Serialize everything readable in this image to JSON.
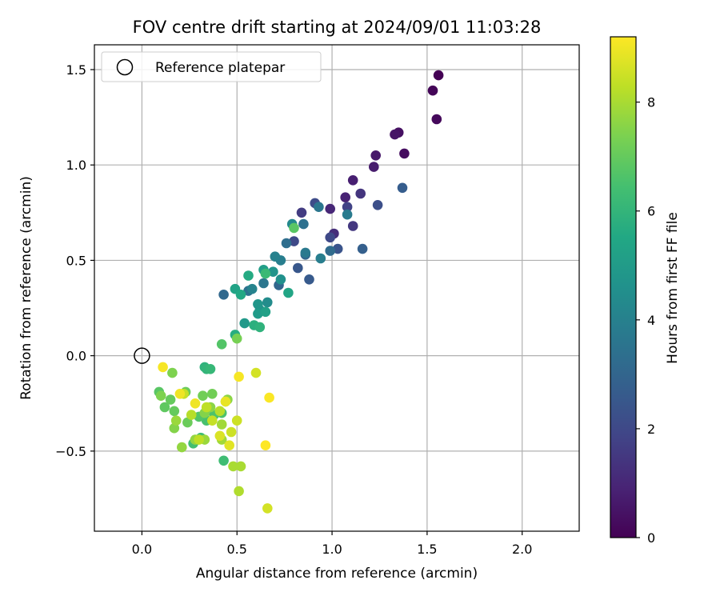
{
  "chart_data": {
    "type": "scatter",
    "title": "FOV centre drift starting at 2024/09/01 11:03:28",
    "xlabel": "Angular distance from reference (arcmin)",
    "ylabel": "Rotation from reference (arcmin)",
    "xlim": [
      -0.25,
      2.3
    ],
    "ylim": [
      -0.92,
      1.63
    ],
    "xticks": [
      0.0,
      0.5,
      1.0,
      1.5,
      2.0
    ],
    "xtick_labels": [
      "0.0",
      "0.5",
      "1.0",
      "1.5",
      "2.0"
    ],
    "yticks": [
      -0.5,
      0.0,
      0.5,
      1.0,
      1.5
    ],
    "ytick_labels": [
      "−0.5",
      "0.0",
      "0.5",
      "1.0",
      "1.5"
    ],
    "grid": true,
    "legend": {
      "placement": "top-left",
      "entries": [
        "Reference platepar"
      ]
    },
    "reference_point": {
      "x": 0.0,
      "y": 0.0
    },
    "colorbar": {
      "label": "Hours from first FF file",
      "colormap": "viridis",
      "range": [
        0,
        9.2
      ],
      "ticks": [
        0,
        2,
        4,
        6,
        8
      ],
      "tick_labels": [
        "0",
        "2",
        "4",
        "6",
        "8"
      ]
    },
    "points": [
      [
        1.56,
        1.47,
        0.0
      ],
      [
        1.53,
        1.39,
        0.1
      ],
      [
        1.55,
        1.24,
        0.2
      ],
      [
        1.38,
        1.06,
        0.3
      ],
      [
        1.35,
        1.17,
        0.4
      ],
      [
        1.33,
        1.16,
        0.5
      ],
      [
        1.23,
        1.05,
        0.6
      ],
      [
        1.22,
        0.99,
        0.7
      ],
      [
        1.11,
        0.92,
        0.8
      ],
      [
        1.07,
        0.83,
        0.9
      ],
      [
        0.99,
        0.77,
        1.0
      ],
      [
        1.01,
        0.64,
        1.2
      ],
      [
        1.15,
        0.85,
        1.4
      ],
      [
        1.11,
        0.68,
        1.5
      ],
      [
        0.84,
        0.75,
        1.6
      ],
      [
        1.08,
        0.78,
        1.8
      ],
      [
        0.99,
        0.62,
        2.0
      ],
      [
        0.8,
        0.6,
        2.0
      ],
      [
        0.91,
        0.8,
        2.1
      ],
      [
        1.24,
        0.79,
        2.2
      ],
      [
        1.03,
        0.56,
        2.4
      ],
      [
        0.82,
        0.46,
        2.5
      ],
      [
        0.88,
        0.4,
        2.6
      ],
      [
        1.37,
        0.88,
        2.7
      ],
      [
        1.16,
        0.56,
        2.8
      ],
      [
        0.86,
        0.53,
        3.0
      ],
      [
        0.72,
        0.37,
        3.0
      ],
      [
        0.43,
        0.32,
        3.1
      ],
      [
        0.99,
        0.55,
        3.2
      ],
      [
        0.76,
        0.59,
        3.3
      ],
      [
        0.85,
        0.69,
        3.4
      ],
      [
        0.56,
        0.34,
        3.5
      ],
      [
        0.64,
        0.38,
        3.6
      ],
      [
        0.93,
        0.78,
        3.6
      ],
      [
        0.86,
        0.54,
        3.7
      ],
      [
        1.08,
        0.74,
        3.8
      ],
      [
        0.73,
        0.5,
        3.9
      ],
      [
        0.94,
        0.51,
        3.9
      ],
      [
        0.7,
        0.52,
        4.0
      ],
      [
        0.58,
        0.35,
        4.1
      ],
      [
        0.79,
        0.69,
        4.3
      ],
      [
        0.66,
        0.28,
        4.4
      ],
      [
        0.62,
        0.24,
        4.5
      ],
      [
        0.73,
        0.4,
        4.6
      ],
      [
        0.69,
        0.44,
        4.7
      ],
      [
        0.61,
        0.27,
        4.8
      ],
      [
        0.54,
        0.17,
        4.9
      ],
      [
        0.61,
        0.22,
        5.0
      ],
      [
        0.64,
        0.45,
        5.1
      ],
      [
        0.65,
        0.23,
        5.2
      ],
      [
        0.49,
        0.35,
        5.3
      ],
      [
        0.77,
        0.33,
        5.4
      ],
      [
        0.52,
        0.32,
        5.5
      ],
      [
        0.56,
        0.42,
        5.6
      ],
      [
        0.49,
        0.11,
        5.7
      ],
      [
        0.59,
        0.16,
        5.8
      ],
      [
        0.62,
        0.15,
        5.9
      ],
      [
        0.33,
        -0.06,
        5.9
      ],
      [
        0.34,
        -0.07,
        6.0
      ],
      [
        0.36,
        -0.07,
        6.1
      ],
      [
        0.65,
        0.43,
        6.2
      ],
      [
        0.43,
        -0.55,
        6.3
      ],
      [
        0.31,
        -0.43,
        6.3
      ],
      [
        0.27,
        -0.46,
        6.4
      ],
      [
        0.34,
        -0.34,
        6.5
      ],
      [
        0.38,
        -0.31,
        6.6
      ],
      [
        0.42,
        -0.3,
        6.6
      ],
      [
        0.3,
        -0.32,
        6.7
      ],
      [
        0.42,
        0.06,
        6.7
      ],
      [
        0.8,
        0.67,
        6.8
      ],
      [
        0.09,
        -0.19,
        6.8
      ],
      [
        0.12,
        -0.27,
        6.9
      ],
      [
        0.15,
        -0.23,
        7.0
      ],
      [
        0.17,
        -0.29,
        7.0
      ],
      [
        0.23,
        -0.19,
        7.1
      ],
      [
        0.24,
        -0.35,
        7.1
      ],
      [
        0.32,
        -0.21,
        7.2
      ],
      [
        0.37,
        -0.2,
        7.2
      ],
      [
        0.44,
        -0.24,
        7.3
      ],
      [
        0.5,
        0.09,
        7.3
      ],
      [
        0.16,
        -0.09,
        7.4
      ],
      [
        0.1,
        -0.21,
        7.4
      ],
      [
        0.17,
        -0.38,
        7.5
      ],
      [
        0.33,
        -0.3,
        7.5
      ],
      [
        0.36,
        -0.27,
        7.6
      ],
      [
        0.45,
        -0.23,
        7.6
      ],
      [
        0.28,
        -0.44,
        7.7
      ],
      [
        0.21,
        -0.48,
        7.7
      ],
      [
        0.18,
        -0.34,
        7.8
      ],
      [
        0.33,
        -0.44,
        7.8
      ],
      [
        0.42,
        -0.36,
        7.9
      ],
      [
        0.42,
        -0.44,
        7.9
      ],
      [
        0.48,
        -0.58,
        8.0
      ],
      [
        0.52,
        -0.58,
        8.0
      ],
      [
        0.51,
        -0.71,
        8.1
      ],
      [
        0.41,
        -0.29,
        8.2
      ],
      [
        0.26,
        -0.31,
        8.2
      ],
      [
        0.3,
        -0.44,
        8.3
      ],
      [
        0.34,
        -0.27,
        8.3
      ],
      [
        0.22,
        -0.2,
        8.4
      ],
      [
        0.37,
        -0.34,
        8.4
      ],
      [
        0.47,
        -0.4,
        8.5
      ],
      [
        0.5,
        -0.34,
        8.5
      ],
      [
        0.66,
        -0.8,
        8.6
      ],
      [
        0.6,
        -0.09,
        8.6
      ],
      [
        0.41,
        -0.42,
        8.7
      ],
      [
        0.46,
        -0.47,
        8.8
      ],
      [
        0.44,
        -0.24,
        8.9
      ],
      [
        0.28,
        -0.25,
        9.0
      ],
      [
        0.2,
        -0.2,
        9.0
      ],
      [
        0.11,
        -0.06,
        9.1
      ],
      [
        0.51,
        -0.11,
        9.1
      ],
      [
        0.67,
        -0.22,
        9.15
      ],
      [
        0.65,
        -0.47,
        9.2
      ]
    ]
  }
}
